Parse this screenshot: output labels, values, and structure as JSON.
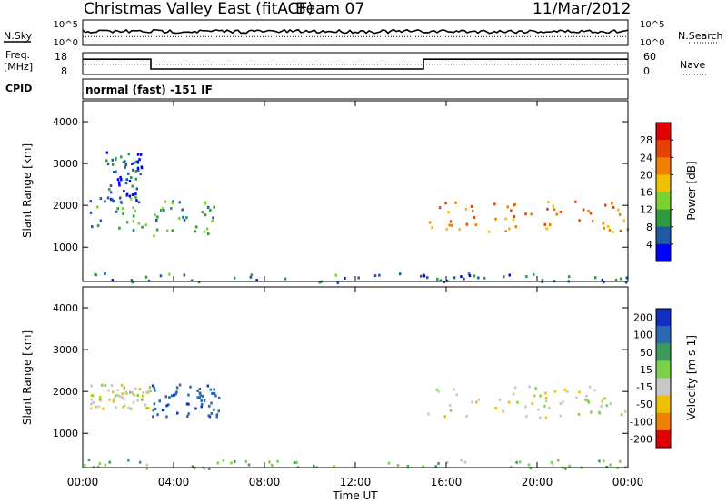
{
  "header": {
    "title": "Christmas Valley East (fitACF)",
    "beam": "Beam 07",
    "date": "11/Mar/2012"
  },
  "status": {
    "nsky_label": "N.Sky",
    "nsearch_label": "N.Search",
    "freq_label": "Freq.",
    "freq_unit": "[MHz]",
    "nave_label": "Nave",
    "cpid_label": "CPID",
    "cpid_text": "normal (fast)  -151  IF",
    "noise_ticks": [
      "10^5",
      "10^0"
    ],
    "freq_ticks": [
      "18",
      "8"
    ],
    "nave_ticks": [
      "60",
      "0"
    ]
  },
  "chart_data": [
    {
      "type": "heatmap",
      "panel": "power",
      "ylabel": "Slant Range [km]",
      "xlabel": "Time UT",
      "xlim": [
        "00:00",
        "24:00"
      ],
      "ylim": [
        180,
        4500
      ],
      "x_ticks": [
        "00:00",
        "04:00",
        "08:00",
        "12:00",
        "16:00",
        "20:00",
        "00:00"
      ],
      "y_ticks": [
        1000,
        2000,
        3000,
        4000
      ],
      "colorbar": {
        "label": "Power [dB]",
        "ticks": [
          4,
          8,
          12,
          16,
          20,
          24,
          28
        ],
        "range": [
          0,
          32
        ],
        "colors": [
          "#0000ff",
          "#1e5aa0",
          "#2e9b3e",
          "#7ad22e",
          "#f0c000",
          "#f08000",
          "#e84000",
          "#e00000"
        ]
      },
      "features": [
        {
          "time_start_h": 0.3,
          "time_end_h": 6.0,
          "range_start_km": 1300,
          "range_end_km": 2200,
          "power_db": 10
        },
        {
          "time_start_h": 15.0,
          "time_end_h": 24.0,
          "range_start_km": 1400,
          "range_end_km": 2150,
          "power_db": 22
        },
        {
          "time_start_h": 1.0,
          "time_end_h": 2.6,
          "range_start_km": 2100,
          "range_end_km": 3300,
          "power_db": 6
        },
        {
          "time_start_h": 0.0,
          "time_end_h": 24.0,
          "range_start_km": 180,
          "range_end_km": 400,
          "power_db": 8
        }
      ]
    },
    {
      "type": "heatmap",
      "panel": "velocity",
      "ylabel": "Slant Range [km]",
      "xlabel": "Time UT",
      "xlim": [
        "00:00",
        "24:00"
      ],
      "ylim": [
        180,
        4500
      ],
      "x_ticks": [
        "00:00",
        "04:00",
        "08:00",
        "12:00",
        "16:00",
        "20:00",
        "00:00"
      ],
      "y_ticks": [
        1000,
        2000,
        3000,
        4000
      ],
      "colorbar": {
        "label": "Velocity [m s-1]",
        "ticks": [
          200,
          100,
          50,
          15,
          -15,
          -50,
          -100,
          -200
        ],
        "colors": [
          "#1030c0",
          "#2a6ab0",
          "#3c9a5a",
          "#7ad24a",
          "#c8c8c8",
          "#f0c000",
          "#f08000",
          "#e00000"
        ]
      },
      "features": [
        {
          "time_start_h": 0.3,
          "time_end_h": 3.0,
          "range_start_km": 1600,
          "range_end_km": 2200,
          "velocity_ms": 0
        },
        {
          "time_start_h": 3.0,
          "time_end_h": 6.0,
          "range_start_km": 1400,
          "range_end_km": 2200,
          "velocity_ms": 180
        },
        {
          "time_start_h": 15.0,
          "time_end_h": 24.0,
          "range_start_km": 1400,
          "range_end_km": 2150,
          "velocity_ms": 0
        },
        {
          "time_start_h": 0.0,
          "time_end_h": 24.0,
          "range_start_km": 180,
          "range_end_km": 400,
          "velocity_ms": 40
        }
      ]
    }
  ],
  "noise_series": {
    "nsky_level": 0.55,
    "nsearch_level": 0.35
  },
  "freq_series": [
    {
      "start_h": 0.0,
      "end_h": 3.0,
      "mhz": 15.0
    },
    {
      "start_h": 3.0,
      "end_h": 15.0,
      "mhz": 10.5
    },
    {
      "start_h": 15.0,
      "end_h": 24.0,
      "mhz": 15.0
    }
  ],
  "nave_series": {
    "level": 28
  }
}
